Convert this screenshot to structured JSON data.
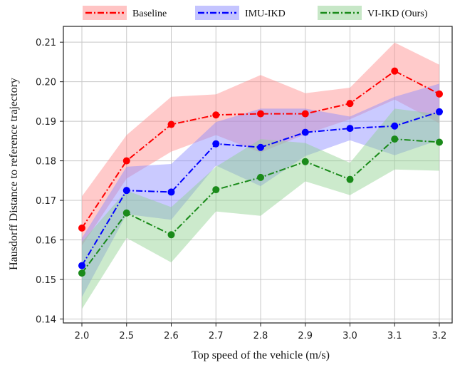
{
  "chart_data": {
    "type": "line",
    "title": "",
    "xlabel": "Top speed of the vehicle (m/s)",
    "ylabel": "Hausdorff Distance to reference trajectory",
    "categories": [
      "2.0",
      "2.5",
      "2.6",
      "2.7",
      "2.8",
      "2.9",
      "3.0",
      "3.1",
      "3.2"
    ],
    "ylim": [
      0.139,
      0.214
    ],
    "yticks": [
      0.14,
      0.15,
      0.16,
      0.17,
      0.18,
      0.19,
      0.2,
      0.21
    ],
    "ytick_labels": [
      "0.14",
      "0.15",
      "0.16",
      "0.17",
      "0.18",
      "0.19",
      "0.20",
      "0.21"
    ],
    "grid": true,
    "legend_position": "top-outside",
    "series": [
      {
        "name": "Baseline",
        "color": "#ff0000",
        "band_color": "#ff8a8a",
        "values": [
          0.163,
          0.18,
          0.1892,
          0.1916,
          0.1919,
          0.1919,
          0.1945,
          0.2027,
          0.1969
        ],
        "upper": [
          0.171,
          0.1865,
          0.1962,
          0.1968,
          0.2017,
          0.1971,
          0.1985,
          0.2099,
          0.2043
        ],
        "lower": [
          0.1585,
          0.1755,
          0.1823,
          0.1865,
          0.1821,
          0.1867,
          0.1905,
          0.1955,
          0.1895
        ]
      },
      {
        "name": "IMU-IKD",
        "color": "#0000ff",
        "band_color": "#8a8aff",
        "values": [
          0.1535,
          0.1725,
          0.1721,
          0.1843,
          0.1834,
          0.1872,
          0.1882,
          0.1888,
          0.1924
        ],
        "upper": [
          0.1605,
          0.1785,
          0.1792,
          0.1898,
          0.1932,
          0.1932,
          0.1912,
          0.1962,
          0.1995
        ],
        "lower": [
          0.1455,
          0.1665,
          0.1651,
          0.1788,
          0.1736,
          0.1812,
          0.1852,
          0.1814,
          0.1853
        ]
      },
      {
        "name": "VI-IKD (Ours)",
        "color": "#1a8a1a",
        "band_color": "#8fd08f",
        "values": [
          0.1516,
          0.1668,
          0.1613,
          0.1727,
          0.1758,
          0.1798,
          0.1753,
          0.1855,
          0.1847
        ],
        "upper": [
          0.1595,
          0.1725,
          0.1683,
          0.1785,
          0.1855,
          0.1845,
          0.1795,
          0.1932,
          0.1918
        ],
        "lower": [
          0.1425,
          0.1605,
          0.1543,
          0.1672,
          0.1661,
          0.1748,
          0.1713,
          0.1778,
          0.1775
        ]
      }
    ]
  }
}
